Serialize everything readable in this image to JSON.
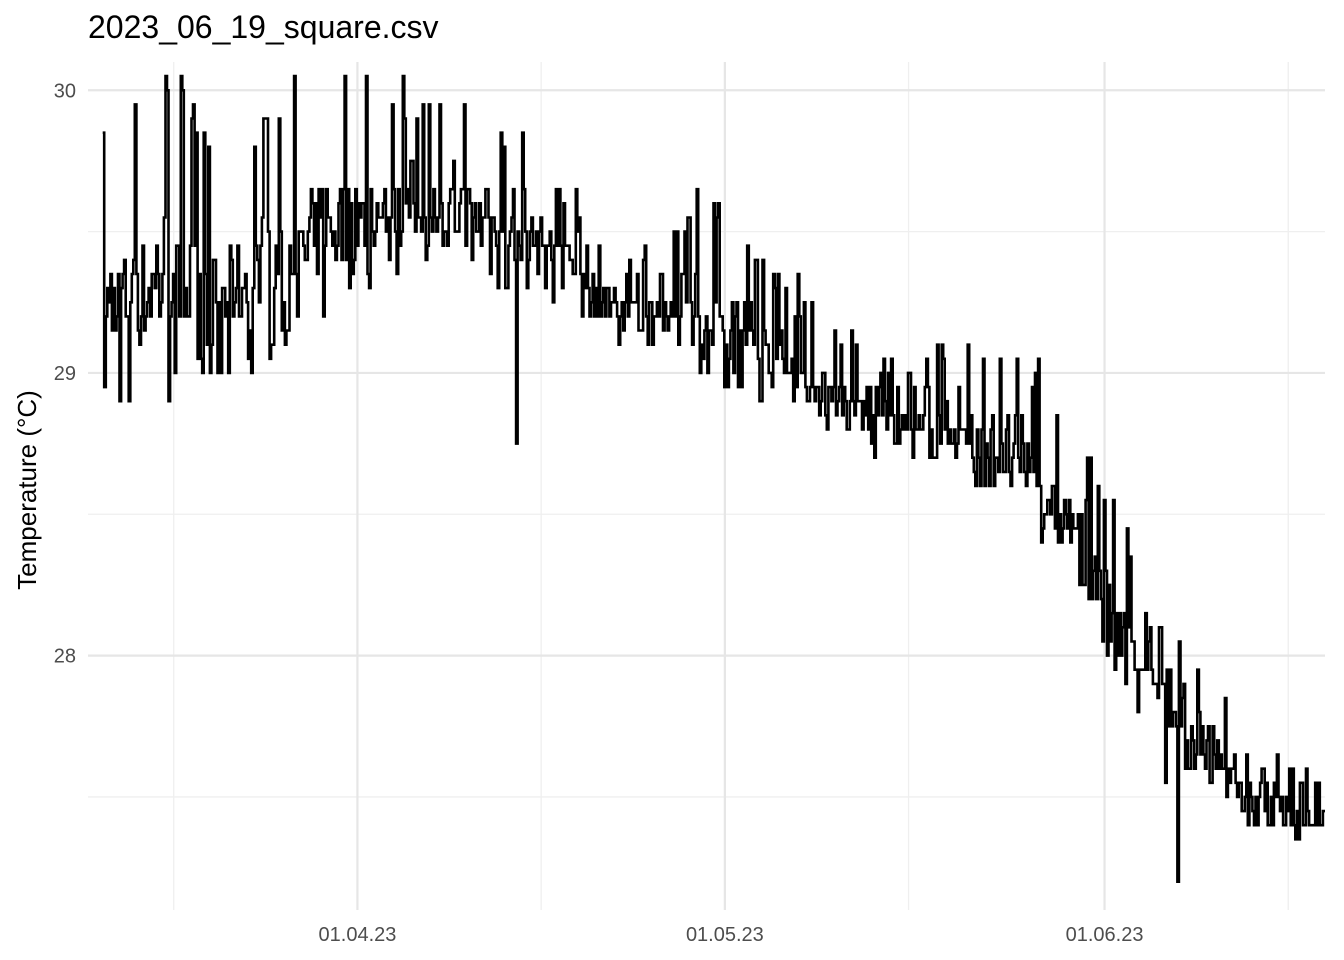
{
  "chart_data": {
    "type": "line",
    "title": "2023_06_19_square.csv",
    "xlabel": "",
    "ylabel": "Temperature (°C)",
    "x_axis": {
      "type": "date",
      "range": [
        "2023-03-10",
        "2023-06-19"
      ],
      "major_ticks": [
        {
          "date": "2023-04-01",
          "label": "01.04.23"
        },
        {
          "date": "2023-05-01",
          "label": "01.05.23"
        },
        {
          "date": "2023-06-01",
          "label": "01.06.23"
        }
      ],
      "minor_ticks": [
        "2023-03-17",
        "2023-04-16",
        "2023-05-16",
        "2023-06-16"
      ]
    },
    "y_axis": {
      "range": [
        27.1,
        30.1
      ],
      "major_ticks": [
        {
          "value": 28,
          "label": "28"
        },
        {
          "value": 29,
          "label": "29"
        },
        {
          "value": 30,
          "label": "30"
        }
      ],
      "minor_ticks": [
        27.5,
        28.5,
        29.5
      ]
    },
    "grid": true,
    "legend": "none",
    "line_color": "#000000",
    "series": [
      {
        "trend": [
          {
            "date": "2023-03-11",
            "low": 28.85,
            "high": 29.85
          },
          {
            "date": "2023-03-16",
            "low": 28.9,
            "high": 30.05
          },
          {
            "date": "2023-03-21",
            "low": 28.95,
            "high": 29.85
          },
          {
            "date": "2023-03-26",
            "low": 29.05,
            "high": 29.95
          },
          {
            "date": "2023-03-31",
            "low": 29.25,
            "high": 30.05
          },
          {
            "date": "2023-04-05",
            "low": 29.35,
            "high": 29.95
          },
          {
            "date": "2023-04-10",
            "low": 29.35,
            "high": 29.95
          },
          {
            "date": "2023-04-15",
            "low": 29.25,
            "high": 29.85
          },
          {
            "date": "2023-04-20",
            "low": 29.15,
            "high": 29.5
          },
          {
            "date": "2023-04-25",
            "low": 29.05,
            "high": 29.45
          },
          {
            "date": "2023-04-30",
            "low": 28.95,
            "high": 29.65
          },
          {
            "date": "2023-05-05",
            "low": 28.85,
            "high": 29.35
          },
          {
            "date": "2023-05-10",
            "low": 28.75,
            "high": 29.15
          },
          {
            "date": "2023-05-15",
            "low": 28.65,
            "high": 29.05
          },
          {
            "date": "2023-05-20",
            "low": 28.6,
            "high": 29.15
          },
          {
            "date": "2023-05-25",
            "low": 28.45,
            "high": 29.05
          },
          {
            "date": "2023-05-30",
            "low": 28.15,
            "high": 28.85
          },
          {
            "date": "2023-06-04",
            "low": 27.75,
            "high": 28.25
          },
          {
            "date": "2023-06-09",
            "low": 27.55,
            "high": 27.85
          },
          {
            "date": "2023-06-14",
            "low": 27.35,
            "high": 27.65
          },
          {
            "date": "2023-06-19",
            "low": 27.3,
            "high": 27.6
          }
        ],
        "dips": [
          {
            "date": "2023-04-14",
            "value": 28.65
          },
          {
            "date": "2023-06-07",
            "value": 27.2
          },
          {
            "date": "2023-06-06",
            "value": 27.45
          }
        ]
      }
    ]
  }
}
